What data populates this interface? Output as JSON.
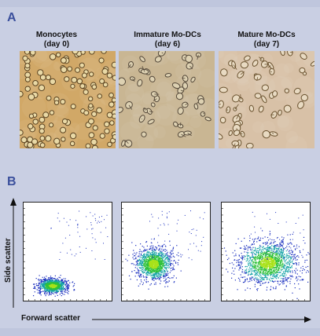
{
  "figure": {
    "panel_a_label": "A",
    "panel_b_label": "B",
    "micrographs": [
      {
        "title": "Monocytes",
        "subtitle": "(day 0)",
        "background": "#d1a867",
        "cell_fill": "#e9d9a6",
        "cell_edge": "#5b4422"
      },
      {
        "title": "Immature Mo-DCs",
        "subtitle": "(day 6)",
        "background": "#c9b693",
        "cell_fill": "#ddd1b2",
        "cell_edge": "#55493a"
      },
      {
        "title": "Mature Mo-DCs",
        "subtitle": "(day 7)",
        "background": "#d8c1a7",
        "cell_fill": "#e8dac2",
        "cell_edge": "#6b5330"
      }
    ],
    "x_axis_label": "Forward scatter",
    "y_axis_label": "Side scatter",
    "density_colors": [
      "#1a2fbf",
      "#14a3a6",
      "#2ec13a",
      "#a9e21a"
    ],
    "accent_color": "#3a4f9c"
  }
}
